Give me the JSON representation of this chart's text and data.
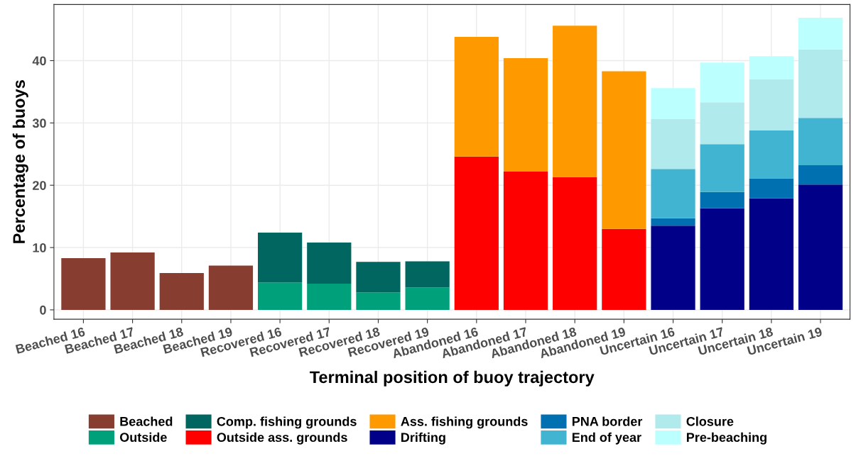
{
  "chart_data": {
    "type": "bar",
    "stacked": true,
    "xlabel": "Terminal position of buoy trajectory",
    "ylabel": "Percentage of buoys",
    "categories": [
      "Beached 16",
      "Beached 17",
      "Beached 18",
      "Beached 19",
      "Recovered 16",
      "Recovered 17",
      "Recovered 18",
      "Recovered 19",
      "Abandoned 16",
      "Abandoned 17",
      "Abandoned 18",
      "Abandoned 19",
      "Uncertain 16",
      "Uncertain 17",
      "Uncertain 18",
      "Uncertain 19"
    ],
    "series": [
      {
        "name": "Beached",
        "color": "#883d31",
        "values": [
          8.3,
          9.2,
          5.9,
          7.1,
          null,
          null,
          null,
          null,
          null,
          null,
          null,
          null,
          null,
          null,
          null,
          null
        ]
      },
      {
        "name": "Outside",
        "color": "#00a07a",
        "values": [
          null,
          null,
          null,
          null,
          4.4,
          4.2,
          2.8,
          3.6,
          null,
          null,
          null,
          null,
          null,
          null,
          null,
          null
        ]
      },
      {
        "name": "Comp. fishing grounds",
        "color": "#00665f",
        "values": [
          null,
          null,
          null,
          null,
          8.0,
          6.6,
          4.9,
          4.2,
          null,
          null,
          null,
          null,
          null,
          null,
          null,
          null
        ]
      },
      {
        "name": "Outside ass. grounds",
        "color": "#ff0000",
        "values": [
          null,
          null,
          null,
          null,
          null,
          null,
          null,
          null,
          24.6,
          22.2,
          21.3,
          13.0,
          null,
          null,
          null,
          null
        ]
      },
      {
        "name": "Ass. fishing grounds",
        "color": "#ff9900",
        "values": [
          null,
          null,
          null,
          null,
          null,
          null,
          null,
          null,
          19.2,
          18.2,
          24.3,
          25.3,
          null,
          null,
          null,
          null
        ]
      },
      {
        "name": "Drifting",
        "color": "#000088",
        "values": [
          null,
          null,
          null,
          null,
          null,
          null,
          null,
          null,
          null,
          null,
          null,
          null,
          13.5,
          16.3,
          17.9,
          20.1
        ]
      },
      {
        "name": "PNA border",
        "color": "#0070b0",
        "values": [
          null,
          null,
          null,
          null,
          null,
          null,
          null,
          null,
          null,
          null,
          null,
          null,
          1.2,
          2.6,
          3.2,
          3.1
        ]
      },
      {
        "name": "End of year",
        "color": "#40b4d0",
        "values": [
          null,
          null,
          null,
          null,
          null,
          null,
          null,
          null,
          null,
          null,
          null,
          null,
          7.9,
          7.7,
          7.7,
          7.6
        ]
      },
      {
        "name": "Closure",
        "color": "#b0eaec",
        "values": [
          null,
          null,
          null,
          null,
          null,
          null,
          null,
          null,
          null,
          null,
          null,
          null,
          8.0,
          6.7,
          8.2,
          11.0
        ]
      },
      {
        "name": "Pre-beaching",
        "color": "#bbffff",
        "values": [
          null,
          null,
          null,
          null,
          null,
          null,
          null,
          null,
          null,
          null,
          null,
          null,
          5.0,
          6.4,
          3.7,
          5.1
        ]
      }
    ],
    "ylim": [
      -1.5,
      49
    ],
    "yticks": [
      0,
      10,
      20,
      30,
      40
    ],
    "grid": true,
    "legend": "bottom"
  }
}
